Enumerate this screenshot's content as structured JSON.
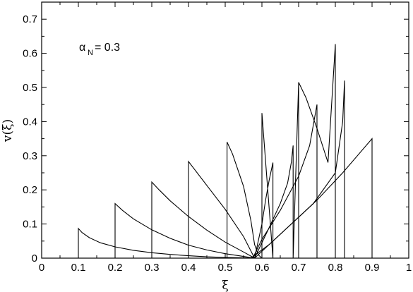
{
  "chart_data": {
    "type": "line",
    "title": "",
    "xlabel": "ξ",
    "ylabel": "v(ξ)",
    "xlim": [
      0,
      1
    ],
    "ylim": [
      0,
      0.75
    ],
    "grid": false,
    "x_ticks": [
      0,
      0.1,
      0.2,
      0.3,
      0.4,
      0.5,
      0.6,
      0.7,
      0.8,
      0.9,
      1
    ],
    "x_tick_labels": [
      "0",
      "0.1",
      "0.2",
      "0.3",
      "0.4",
      "0.5",
      "0.6",
      "0.7",
      "0.8",
      "0.9",
      "1"
    ],
    "y_ticks": [
      0,
      0.1,
      0.2,
      0.3,
      0.4,
      0.5,
      0.6,
      0.7
    ],
    "y_tick_labels": [
      "0",
      "0.1",
      "0.2",
      "0.3",
      "0.4",
      "0.5",
      "0.6",
      "0.7"
    ],
    "annotation": {
      "main": "α",
      "sub": "N",
      "value": " = 0.3"
    },
    "series": [
      {
        "x": [
          0.1,
          0.1,
          0.11,
          0.13,
          0.16,
          0.2,
          0.25,
          0.3,
          0.35,
          0.4,
          0.45,
          0.5,
          0.55,
          0.58
        ],
        "y": [
          0,
          0.087,
          0.075,
          0.06,
          0.045,
          0.033,
          0.023,
          0.016,
          0.011,
          0.007,
          0.004,
          0.002,
          0.001,
          0
        ]
      },
      {
        "x": [
          0.2,
          0.2,
          0.22,
          0.25,
          0.3,
          0.35,
          0.4,
          0.45,
          0.5,
          0.55,
          0.58
        ],
        "y": [
          0,
          0.16,
          0.14,
          0.115,
          0.083,
          0.058,
          0.038,
          0.024,
          0.013,
          0.005,
          0
        ]
      },
      {
        "x": [
          0.3,
          0.3,
          0.32,
          0.35,
          0.4,
          0.45,
          0.5,
          0.55,
          0.58
        ],
        "y": [
          0,
          0.223,
          0.2,
          0.168,
          0.122,
          0.082,
          0.047,
          0.018,
          0
        ]
      },
      {
        "x": [
          0.4,
          0.4,
          0.42,
          0.45,
          0.5,
          0.55,
          0.58
        ],
        "y": [
          0,
          0.283,
          0.255,
          0.213,
          0.143,
          0.063,
          0
        ]
      },
      {
        "x": [
          0.505,
          0.505,
          0.52,
          0.55,
          0.57,
          0.58,
          0.59,
          0.6
        ],
        "y": [
          0,
          0.34,
          0.305,
          0.21,
          0.11,
          0.04,
          0.01,
          0
        ]
      },
      {
        "x": [
          0.58,
          0.6,
          0.61,
          0.62,
          0.63,
          0.63,
          0.6,
          0.6
        ],
        "y": [
          0,
          0.1,
          0.17,
          0.23,
          0.28,
          0,
          0.425,
          0
        ]
      },
      {
        "x": [
          0.58,
          0.62,
          0.65,
          0.67,
          0.68,
          0.685,
          0.685,
          0.7,
          0.7
        ],
        "y": [
          0,
          0.09,
          0.16,
          0.22,
          0.28,
          0.33,
          0,
          0.515,
          0
        ]
      },
      {
        "x": [
          0.575,
          0.6,
          0.65,
          0.7,
          0.73,
          0.75,
          0.75
        ],
        "y": [
          0,
          0.055,
          0.14,
          0.24,
          0.33,
          0.45,
          0
        ]
      },
      {
        "x": [
          0.58,
          0.62,
          0.68,
          0.74,
          0.8,
          0.82,
          0.825,
          0.825
        ],
        "y": [
          0,
          0.04,
          0.1,
          0.16,
          0.25,
          0.4,
          0.52,
          0
        ]
      },
      {
        "x": [
          0.57,
          0.62,
          0.68,
          0.75,
          0.82,
          0.9,
          0.9
        ],
        "y": [
          0,
          0.04,
          0.1,
          0.17,
          0.25,
          0.35,
          0
        ]
      },
      {
        "x": [
          0.7,
          0.72,
          0.75,
          0.78,
          0.8,
          0.8
        ],
        "y": [
          0.515,
          0.47,
          0.38,
          0.28,
          0.627,
          0
        ]
      }
    ]
  }
}
